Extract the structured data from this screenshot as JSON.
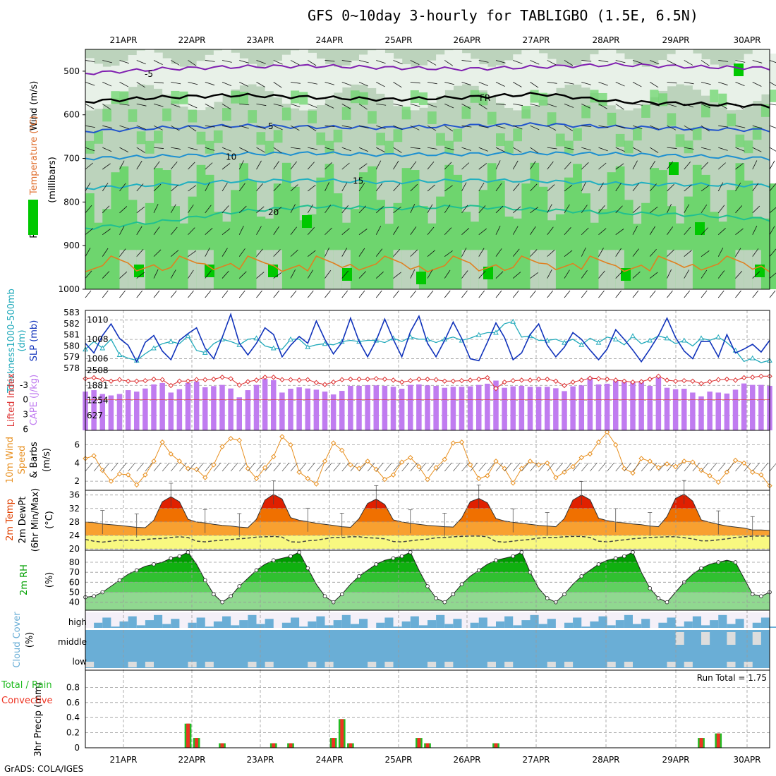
{
  "title": "GFS 0~10day 3-hourly for TABLIGBO (1.5E, 6.5N)",
  "credit": "GrADS: COLA/IGES",
  "dates": [
    "21APR",
    "22APR",
    "23APR",
    "24APR",
    "25APR",
    "26APR",
    "27APR",
    "28APR",
    "29APR",
    "30APR"
  ],
  "colors": {
    "rh_dark": "#00c800",
    "rh_mid": "#6ed56e",
    "rh_light": "#bcd3bc",
    "rh_pale": "#e8f1e8",
    "slp": "#1133bb",
    "thickness": "#22aabb",
    "cape": "#c07cf0",
    "li": "#dd3333",
    "wind10": "#e89020",
    "temp_hot": "#e02000",
    "temp_mid": "#f07000",
    "temp_warm": "#f8a030",
    "temp_cool": "#f8d048",
    "temp_yellow": "#f8f880",
    "rh2m": "#009a00",
    "cloud": "#6aaed6",
    "cloud_bg": "#f4f0f8",
    "precip_total": "#22bb22",
    "precip_conv": "#ee3322"
  },
  "chart_data": [
    {
      "type": "heatmap",
      "panel": "upper-air",
      "ylabel": "(millibars)",
      "legend": [
        "Temperature (°C)",
        "Wind (m/s)",
        "RH (%)"
      ],
      "yticks": [
        500,
        600,
        700,
        800,
        900,
        1000
      ],
      "ylim": [
        450,
        1000
      ],
      "isotherms": [
        {
          "label": "-5",
          "color": "#8020b0",
          "values": [
            505,
            495,
            490,
            488,
            492,
            495,
            490,
            485,
            490,
            493
          ]
        },
        {
          "label": "FR",
          "color": "#000000",
          "values": [
            570,
            560,
            555,
            560,
            565,
            560,
            552,
            570,
            575,
            580
          ]
        },
        {
          "label": "5",
          "color": "#2255cc",
          "values": [
            638,
            630,
            625,
            628,
            630,
            625,
            622,
            628,
            632,
            635
          ]
        },
        {
          "label": "10",
          "color": "#1e90d0",
          "values": [
            700,
            695,
            690,
            688,
            692,
            690,
            688,
            690,
            695,
            700
          ]
        },
        {
          "label": "15",
          "color": "#20b0c0",
          "values": [
            768,
            760,
            752,
            750,
            755,
            750,
            752,
            758,
            760,
            762
          ]
        },
        {
          "label": "20",
          "color": "#20c090",
          "values": [
            860,
            845,
            822,
            810,
            815,
            810,
            818,
            825,
            830,
            840
          ]
        }
      ]
    },
    {
      "type": "line",
      "panel": "slp-thickness",
      "series": [
        {
          "name": "SLP (mb)",
          "yticks": [
            1006,
            1008,
            1010
          ],
          "values": [
            1007.6,
            1006.6,
            1008.4,
            1009.6,
            1008.1,
            1007.4,
            1005.7,
            1007.7,
            1008.4,
            1006.8,
            1005.9,
            1007.9,
            1008.6,
            1009.2,
            1007.1,
            1006.0,
            1008.2,
            1010.6,
            1007.6,
            1006.4,
            1007.6,
            1009.2,
            1008.5,
            1006.2,
            1007.4,
            1008.3,
            1007.6,
            1009.9,
            1008.0,
            1006.5,
            1007.7,
            1010.2,
            1007.8,
            1006.2,
            1007.9,
            1010.1,
            1008.0,
            1006.2,
            1008.8,
            1010.4,
            1007.6,
            1006.2,
            1007.9,
            1009.8,
            1008.1,
            1006.0,
            1005.8,
            1007.7,
            1009.7,
            1008.2,
            1005.9,
            1006.6,
            1008.5,
            1009.6,
            1007.4,
            1006.2,
            1007.2,
            1008.7,
            1008.0,
            1006.9,
            1005.9,
            1007.0,
            1009.0,
            1008.0,
            1006.9,
            1005.7,
            1007.0,
            1008.4,
            1010.2,
            1008.2,
            1006.8,
            1006.0,
            1007.8,
            1007.8,
            1006.2,
            1008.5,
            1006.6,
            1007.0,
            1007.5,
            1006.7,
            1007.9
          ]
        },
        {
          "name": "Thickness 1000-500mb (dm)",
          "yticks": [
            578,
            579,
            580,
            581,
            582,
            583
          ],
          "values": [
            579.7,
            580.4,
            579.8,
            580.6,
            579.2,
            578.9,
            578.7,
            579.3,
            579.8,
            580.2,
            580.4,
            580.2,
            580.9,
            579.6,
            579.4,
            580.2,
            580.6,
            580.4,
            580.1,
            580.6,
            580.7,
            580.0,
            579.8,
            579.7,
            580.6,
            580.6,
            579.9,
            580.1,
            580.2,
            580.1,
            580.4,
            580.5,
            580.4,
            580.5,
            580.5,
            580.3,
            580.7,
            580.4,
            580.8,
            580.6,
            580.6,
            580.3,
            580.6,
            580.8,
            580.5,
            580.7,
            581.0,
            581.2,
            581.2,
            582.0,
            582.2,
            580.8,
            580.9,
            580.5,
            580.5,
            580.6,
            580.3,
            580.6,
            580.1,
            580.7,
            580.3,
            580.8,
            580.6,
            580.1,
            580.9,
            580.2,
            580.5,
            580.9,
            580.7,
            580.2,
            580.5,
            580.0,
            580.7,
            580.5,
            580.8,
            580.3,
            579.6,
            578.6,
            578.9,
            578.5,
            578.7
          ]
        }
      ]
    },
    {
      "type": "bar",
      "panel": "cape-li",
      "series": [
        {
          "name": "CAPE (J/kg)",
          "yticks": [
            627,
            1254,
            1881,
            2508
          ],
          "values": [
            1620,
            1680,
            1520,
            1460,
            1520,
            1680,
            1620,
            1750,
            1920,
            1980,
            1580,
            1720,
            1980,
            2040,
            1800,
            1850,
            1900,
            1750,
            1380,
            1680,
            1900,
            2150,
            2100,
            1580,
            1740,
            1800,
            1750,
            1700,
            1620,
            1500,
            1650,
            1860,
            1860,
            1890,
            1880,
            1860,
            1820,
            1740,
            1900,
            1920,
            1880,
            1860,
            1780,
            1820,
            1820,
            1840,
            1900,
            1950,
            2080,
            1780,
            1840,
            1860,
            1820,
            1820,
            1820,
            1760,
            1640,
            1840,
            1880,
            2220,
            1920,
            1950,
            2080,
            2020,
            2050,
            2050,
            1860,
            2200,
            1780,
            1720,
            1740,
            1580,
            1420,
            1620,
            1580,
            1540,
            1700,
            1960,
            1900,
            1900,
            1860
          ]
        },
        {
          "name": "Lifted Index",
          "yticks": [
            -3,
            0,
            3,
            6
          ],
          "values": [
            -4.3,
            -4.5,
            -4.1,
            -3.8,
            -4.1,
            -3.8,
            -3.8,
            -3.9,
            -4.2,
            -4.1,
            -2.9,
            -3.8,
            -3.8,
            -4.1,
            -4.1,
            -4.2,
            -4.6,
            -4.3,
            -3.0,
            -3.7,
            -4.0,
            -4.6,
            -4.6,
            -4.1,
            -4.1,
            -4.0,
            -4.1,
            -3.5,
            -3.1,
            -3.6,
            -4.1,
            -4.2,
            -4.2,
            -4.2,
            -4.3,
            -4.2,
            -4.0,
            -3.6,
            -3.9,
            -4.2,
            -4.2,
            -4.1,
            -3.8,
            -3.8,
            -3.9,
            -4.0,
            -4.2,
            -4.5,
            -2.3,
            -3.6,
            -3.9,
            -4.0,
            -4.0,
            -4.2,
            -4.2,
            -3.8,
            -2.9,
            -3.6,
            -4.0,
            -4.4,
            -4.3,
            -4.2,
            -4.0,
            -3.8,
            -3.6,
            -3.7,
            -4.2,
            -4.8,
            -4.0,
            -3.8,
            -3.9,
            -3.8,
            -3.3,
            -3.7,
            -4.1,
            -4.2,
            -4.0,
            -4.5,
            -4.6,
            -4.8,
            -4.8
          ]
        }
      ]
    },
    {
      "type": "line",
      "panel": "wind10m",
      "ylabel": "10m Wind Speed & Barbs (m/s)",
      "yticks": [
        2,
        4,
        6
      ],
      "values": [
        4.5,
        4.8,
        3.2,
        2.0,
        2.8,
        2.7,
        1.6,
        2.7,
        4.2,
        6.3,
        5.0,
        4.2,
        3.4,
        3.3,
        2.4,
        3.8,
        5.8,
        6.7,
        6.5,
        3.4,
        2.3,
        3.5,
        4.7,
        6.9,
        6.0,
        3.0,
        2.3,
        1.7,
        4.2,
        6.2,
        5.4,
        3.8,
        3.4,
        4.2,
        3.3,
        2.2,
        2.7,
        4.1,
        4.6,
        3.6,
        2.2,
        3.5,
        4.4,
        6.2,
        6.3,
        3.8,
        2.3,
        2.6,
        4.2,
        3.4,
        1.8,
        3.4,
        4.2,
        3.8,
        4.0,
        2.4,
        3.0,
        3.6,
        4.6,
        5.0,
        6.3,
        7.4,
        6.0,
        3.4,
        2.9,
        4.5,
        4.2,
        3.5,
        3.9,
        3.6,
        4.2,
        4.1,
        3.2,
        2.6,
        1.9,
        3.0,
        4.3,
        4.0,
        3.0,
        2.7,
        1.5
      ]
    },
    {
      "type": "area",
      "panel": "temp2m",
      "ylabel": "2m Temp 2m DewPt (6hr Min/Max) (°C)",
      "yticks": [
        20,
        24,
        28,
        32,
        36
      ],
      "series": [
        {
          "name": "2m Temp",
          "values": [
            28.0,
            27.8,
            27.4,
            27.2,
            27.0,
            26.7,
            26.4,
            26.3,
            28.5,
            34.0,
            35.5,
            34.0,
            28.8,
            28.0,
            27.7,
            27.3,
            27.0,
            26.8,
            26.5,
            26.3,
            28.8,
            34.5,
            36.2,
            34.8,
            29.3,
            28.5,
            28.1,
            27.6,
            27.3,
            27.0,
            26.6,
            26.4,
            29.0,
            33.5,
            34.8,
            33.2,
            28.6,
            28.0,
            27.6,
            27.3,
            27.0,
            26.8,
            26.6,
            26.5,
            29.2,
            34.0,
            35.0,
            33.7,
            29.0,
            28.3,
            27.9,
            27.6,
            27.3,
            27.0,
            26.8,
            26.6,
            29.0,
            34.5,
            36.0,
            34.6,
            29.1,
            28.4,
            28.0,
            27.7,
            27.4,
            27.2,
            26.8,
            26.6,
            29.6,
            35.0,
            36.3,
            34.2,
            28.6,
            27.9,
            27.3,
            26.8,
            26.5,
            26.2,
            25.6,
            25.6,
            25.5
          ]
        },
        {
          "name": "2m DewPt",
          "values": [
            22.8,
            22.3,
            22.0,
            22.3,
            22.6,
            22.6,
            22.5,
            22.8,
            23.0,
            23.1,
            23.4,
            23.6,
            23.4,
            22.3,
            22.1,
            22.4,
            22.6,
            22.8,
            23.0,
            23.2,
            23.5,
            23.6,
            23.7,
            23.5,
            22.1,
            22.0,
            22.4,
            22.6,
            23.0,
            23.4,
            23.4,
            23.6,
            23.6,
            23.3,
            23.2,
            23.0,
            22.2,
            22.1,
            22.4,
            22.7,
            22.9,
            23.3,
            23.4,
            23.6,
            23.7,
            23.8,
            23.8,
            23.6,
            22.2,
            22.0,
            22.3,
            22.6,
            22.8,
            23.2,
            23.4,
            23.4,
            23.6,
            23.7,
            23.7,
            23.4,
            22.3,
            22.1,
            22.4,
            22.7,
            23.0,
            23.2,
            23.4,
            23.5,
            23.6,
            23.6,
            23.3,
            23.0,
            22.4,
            22.4,
            22.7,
            23.0,
            23.4,
            23.6,
            23.8,
            23.8,
            23.8
          ]
        }
      ]
    },
    {
      "type": "area",
      "panel": "rh2m",
      "ylabel": "2m RH (%)",
      "yticks": [
        40,
        50,
        60,
        70,
        80
      ],
      "values": [
        45,
        46,
        50,
        56,
        62,
        68,
        72,
        76,
        78,
        80,
        84,
        86,
        90,
        78,
        62,
        48,
        40,
        46,
        56,
        64,
        72,
        78,
        82,
        84,
        86,
        90,
        74,
        58,
        46,
        40,
        48,
        58,
        66,
        72,
        78,
        82,
        84,
        86,
        90,
        72,
        56,
        44,
        40,
        48,
        58,
        66,
        72,
        78,
        82,
        84,
        86,
        90,
        70,
        54,
        44,
        40,
        48,
        58,
        66,
        72,
        78,
        82,
        84,
        86,
        90,
        70,
        54,
        44,
        40,
        50,
        60,
        68,
        74,
        78,
        80,
        82,
        80,
        64,
        48,
        46,
        50
      ]
    },
    {
      "type": "bar",
      "panel": "cloud",
      "ylabel": "Cloud Cover (%)",
      "categories": [
        "high",
        "middle",
        "low"
      ]
    },
    {
      "type": "bar",
      "panel": "precip",
      "ylabel": "3hr Precip (mm)",
      "legend": [
        "Total / Rain",
        "Convective"
      ],
      "annotation": "Run Total = 1.75",
      "yticks": [
        0,
        0.2,
        0.4,
        0.6,
        0.8
      ],
      "ylim": [
        0,
        1.0
      ],
      "series": [
        {
          "name": "Total",
          "values": [
            0,
            0,
            0,
            0,
            0,
            0,
            0,
            0,
            0,
            0,
            0,
            0,
            0.32,
            0.13,
            0,
            0,
            0.06,
            0,
            0,
            0,
            0,
            0,
            0.06,
            0,
            0.06,
            0,
            0,
            0,
            0,
            0.13,
            0.38,
            0.06,
            0,
            0,
            0,
            0,
            0,
            0,
            0,
            0.13,
            0.06,
            0,
            0,
            0,
            0,
            0,
            0,
            0,
            0.06,
            0,
            0,
            0,
            0,
            0,
            0,
            0,
            0,
            0,
            0,
            0,
            0,
            0,
            0,
            0,
            0,
            0,
            0,
            0,
            0,
            0,
            0,
            0,
            0.13,
            0,
            0.19,
            0,
            0,
            0,
            0,
            0,
            0
          ]
        },
        {
          "name": "Convective",
          "values": [
            0,
            0,
            0,
            0,
            0,
            0,
            0,
            0,
            0,
            0,
            0,
            0,
            0.32,
            0.13,
            0,
            0,
            0.06,
            0,
            0,
            0,
            0,
            0,
            0.06,
            0,
            0.06,
            0,
            0,
            0,
            0,
            0.13,
            0.38,
            0.06,
            0,
            0,
            0,
            0,
            0,
            0,
            0,
            0.13,
            0.06,
            0,
            0,
            0,
            0,
            0,
            0,
            0,
            0.06,
            0,
            0,
            0,
            0,
            0,
            0,
            0,
            0,
            0,
            0,
            0,
            0,
            0,
            0,
            0,
            0,
            0,
            0,
            0,
            0,
            0,
            0,
            0,
            0.13,
            0,
            0.19,
            0,
            0,
            0,
            0,
            0,
            0
          ]
        }
      ]
    }
  ],
  "axis_titles": {
    "upper_wind": "Wind (m/s)",
    "upper_temp": "Temperature (°C)",
    "upper_rh": "RH (%)",
    "upper_mb": "(millibars)",
    "thickness": "Thickness 1000-500mb (dm)",
    "slp": "SLP (mb)",
    "li": "Lifted Index",
    "cape": "CAPE (J/kg)",
    "wind10": "10m Wind",
    "wind10b": "Speed",
    "wind10c": "& Barbs",
    "wind10d": "(m/s)",
    "temp1": "2m Temp",
    "temp2": "2m DewPt",
    "temp3": "(6hr Min/Max)",
    "temp4": "(°C)",
    "rh1": "2m RH",
    "rh2": "(%)",
    "cloud1": "Cloud Cover",
    "cloud2": "(%)",
    "precip1": "3hr Precip (mm)",
    "precip_legend1": "Total / Rain",
    "precip_legend2": "Convective",
    "precip_total": "Run Total = 1.75"
  }
}
